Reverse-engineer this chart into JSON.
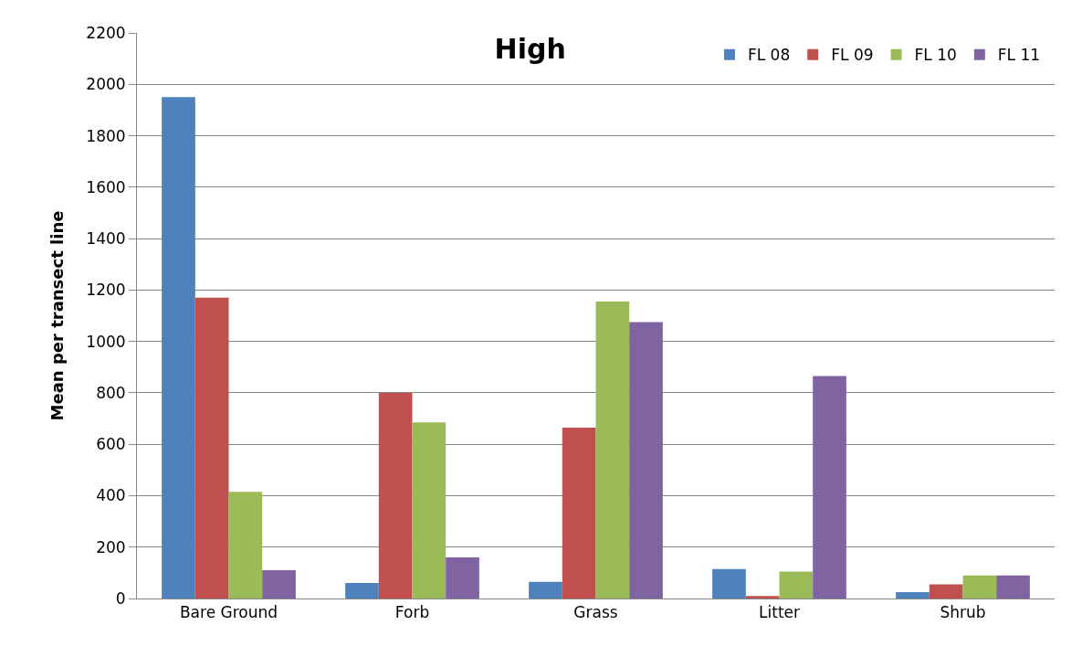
{
  "chart_data": {
    "type": "bar",
    "title": "High",
    "ylabel": "Mean per transect line",
    "categories": [
      "Bare Ground",
      "Forb",
      "Grass",
      "Litter",
      "Shrub"
    ],
    "series": [
      {
        "name": "FL 08",
        "color": "#4f81bd",
        "values": [
          1950,
          60,
          65,
          115,
          25
        ]
      },
      {
        "name": "FL 09",
        "color": "#c0504d",
        "values": [
          1170,
          800,
          665,
          10,
          55
        ]
      },
      {
        "name": "FL 10",
        "color": "#9bbb59",
        "values": [
          415,
          685,
          1155,
          105,
          90
        ]
      },
      {
        "name": "FL 11",
        "color": "#8064a2",
        "values": [
          110,
          160,
          1075,
          865,
          90
        ]
      }
    ],
    "ylim": [
      0,
      2200
    ],
    "yticks": [
      0,
      200,
      400,
      600,
      800,
      1000,
      1200,
      1400,
      1600,
      1800,
      2000,
      2200
    ],
    "grid": "y",
    "legend": "top right"
  }
}
